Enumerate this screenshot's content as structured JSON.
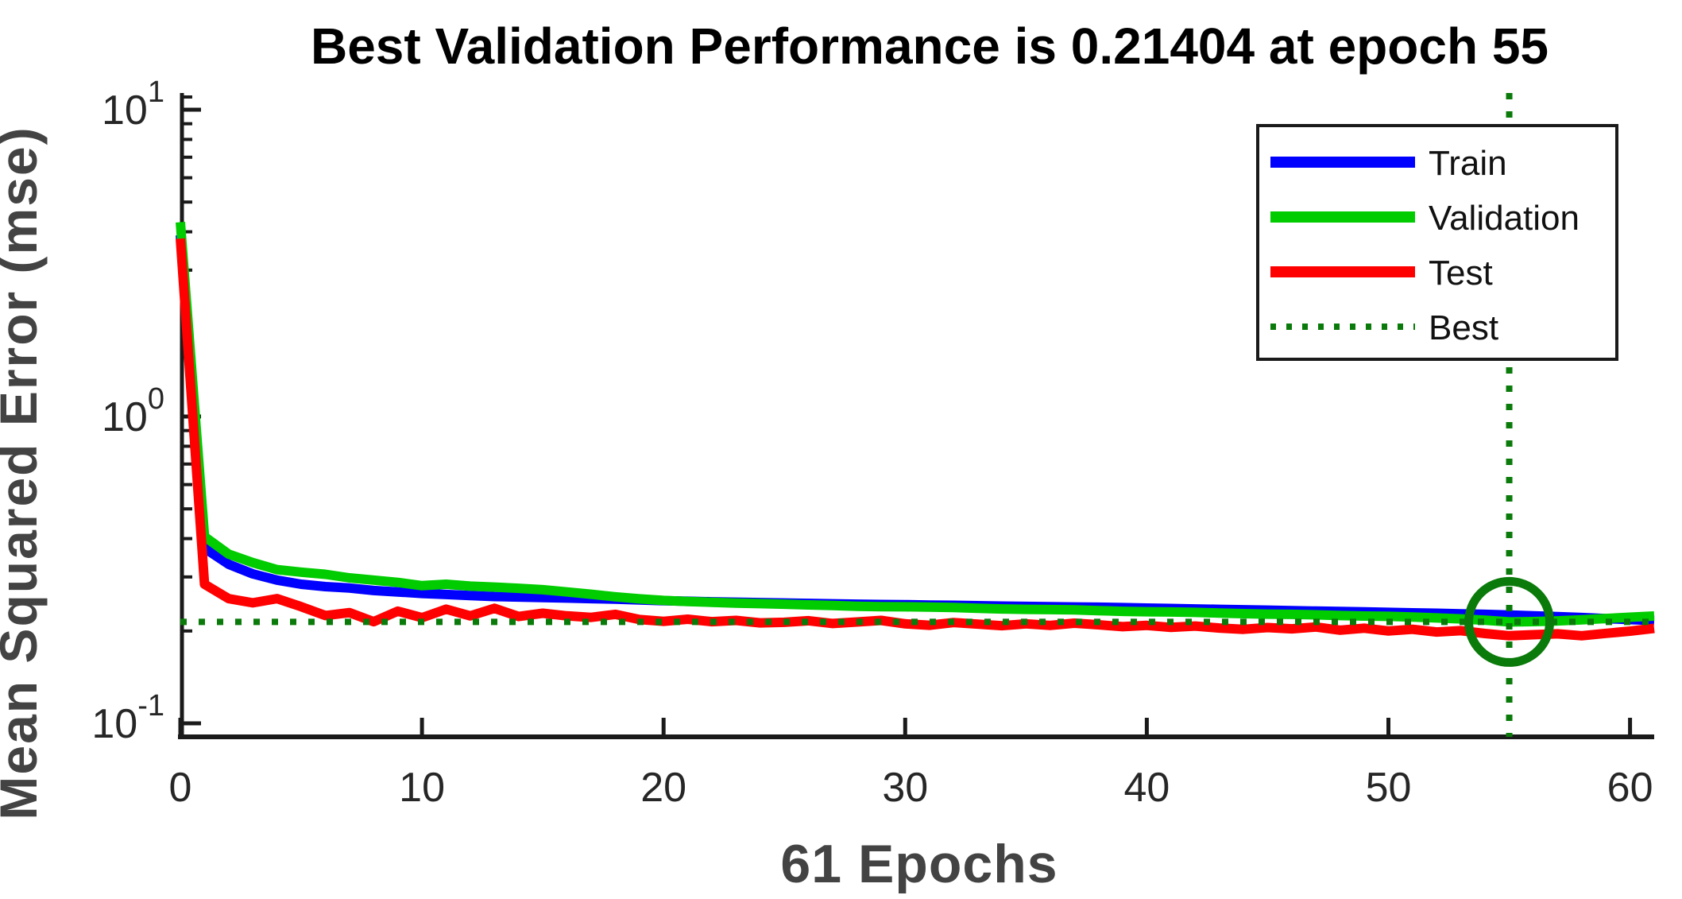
{
  "chart_data": {
    "type": "line",
    "title": "Best Validation Performance is 0.21404 at epoch 55",
    "xlabel": "61 Epochs",
    "ylabel": "Mean Squared Error  (mse)",
    "yscale": "log",
    "xlim": [
      0,
      61
    ],
    "ylim_approx": [
      0.09,
      11.3
    ],
    "grid": false,
    "legend_position": "upper right",
    "x_ticks": [
      0,
      10,
      20,
      30,
      40,
      50,
      60
    ],
    "y_ticks": [
      {
        "base": "10",
        "exp": "1",
        "value": 10
      },
      {
        "base": "10",
        "exp": "0",
        "value": 1
      },
      {
        "base": "10",
        "exp": "-1",
        "value": 0.1
      }
    ],
    "y_minor_ticks": [
      0.2,
      0.3,
      0.4,
      0.5,
      0.6,
      0.7,
      0.8,
      0.9,
      2,
      3,
      4,
      5,
      6,
      7,
      8,
      9,
      11
    ],
    "best": {
      "value": 0.21404,
      "epoch": 55
    },
    "x_unit": "epoch (index of each value, 0 to 61)",
    "series": [
      {
        "name": "Train",
        "color": "#0000FF",
        "style": "solid",
        "values": [
          3.9,
          0.372,
          0.33,
          0.307,
          0.293,
          0.284,
          0.279,
          0.276,
          0.271,
          0.268,
          0.265,
          0.263,
          0.261,
          0.259,
          0.258,
          0.257,
          0.256,
          0.255,
          0.254,
          0.2525,
          0.251,
          0.25,
          0.249,
          0.2482,
          0.2475,
          0.2468,
          0.246,
          0.2452,
          0.2445,
          0.244,
          0.2436,
          0.243,
          0.2425,
          0.2418,
          0.241,
          0.2405,
          0.24,
          0.2395,
          0.239,
          0.2383,
          0.2375,
          0.2368,
          0.236,
          0.2352,
          0.2345,
          0.2338,
          0.233,
          0.2322,
          0.2315,
          0.2308,
          0.23,
          0.2292,
          0.2284,
          0.2275,
          0.2265,
          0.2255,
          0.2242,
          0.2228,
          0.2212,
          0.2195,
          0.2178,
          0.2165
        ]
      },
      {
        "name": "Validation",
        "color": "#00CC00",
        "style": "solid",
        "values": [
          4.3,
          0.406,
          0.356,
          0.334,
          0.317,
          0.311,
          0.306,
          0.298,
          0.293,
          0.288,
          0.281,
          0.284,
          0.28,
          0.278,
          0.2755,
          0.2725,
          0.268,
          0.2635,
          0.2585,
          0.2545,
          0.2515,
          0.2495,
          0.248,
          0.2465,
          0.2455,
          0.2445,
          0.2432,
          0.242,
          0.2408,
          0.24,
          0.2398,
          0.2393,
          0.2385,
          0.2372,
          0.236,
          0.2352,
          0.2348,
          0.2342,
          0.233,
          0.2318,
          0.231,
          0.2306,
          0.23,
          0.2288,
          0.2278,
          0.227,
          0.2266,
          0.2258,
          0.2246,
          0.2238,
          0.2232,
          0.222,
          0.2205,
          0.219,
          0.2168,
          0.21404,
          0.2146,
          0.2158,
          0.2175,
          0.2196,
          0.2218,
          0.2238
        ]
      },
      {
        "name": "Test",
        "color": "#FF0000",
        "style": "solid",
        "values": [
          3.8,
          0.284,
          0.255,
          0.247,
          0.255,
          0.24,
          0.2245,
          0.2295,
          0.2145,
          0.232,
          0.221,
          0.2355,
          0.224,
          0.237,
          0.223,
          0.2285,
          0.224,
          0.2215,
          0.2265,
          0.218,
          0.215,
          0.2185,
          0.2145,
          0.2165,
          0.2125,
          0.2135,
          0.216,
          0.2115,
          0.214,
          0.2165,
          0.211,
          0.2088,
          0.213,
          0.2105,
          0.208,
          0.211,
          0.2085,
          0.212,
          0.2095,
          0.2065,
          0.2085,
          0.2055,
          0.2075,
          0.2045,
          0.2025,
          0.2052,
          0.2032,
          0.206,
          0.2012,
          0.2042,
          0.2,
          0.2025,
          0.1985,
          0.2005,
          0.1962,
          0.193,
          0.1945,
          0.1958,
          0.193,
          0.1965,
          0.1998,
          0.204
        ]
      }
    ],
    "legend": [
      {
        "label": "Train",
        "color": "#0000FF",
        "style": "solid"
      },
      {
        "label": "Validation",
        "color": "#00CC00",
        "style": "solid"
      },
      {
        "label": "Test",
        "color": "#FF0000",
        "style": "solid"
      },
      {
        "label": "Best",
        "color": "#0A7A0A",
        "style": "dotted"
      }
    ],
    "colors": {
      "background": "#FFFFFF",
      "axis": "#1A1A1A",
      "tick_labels": "#262626",
      "axis_labels": "#434343",
      "title": "#000000",
      "best_line": "#0A7A0A",
      "legend_text": "#111111",
      "legend_background": "#FFFFFF"
    }
  }
}
